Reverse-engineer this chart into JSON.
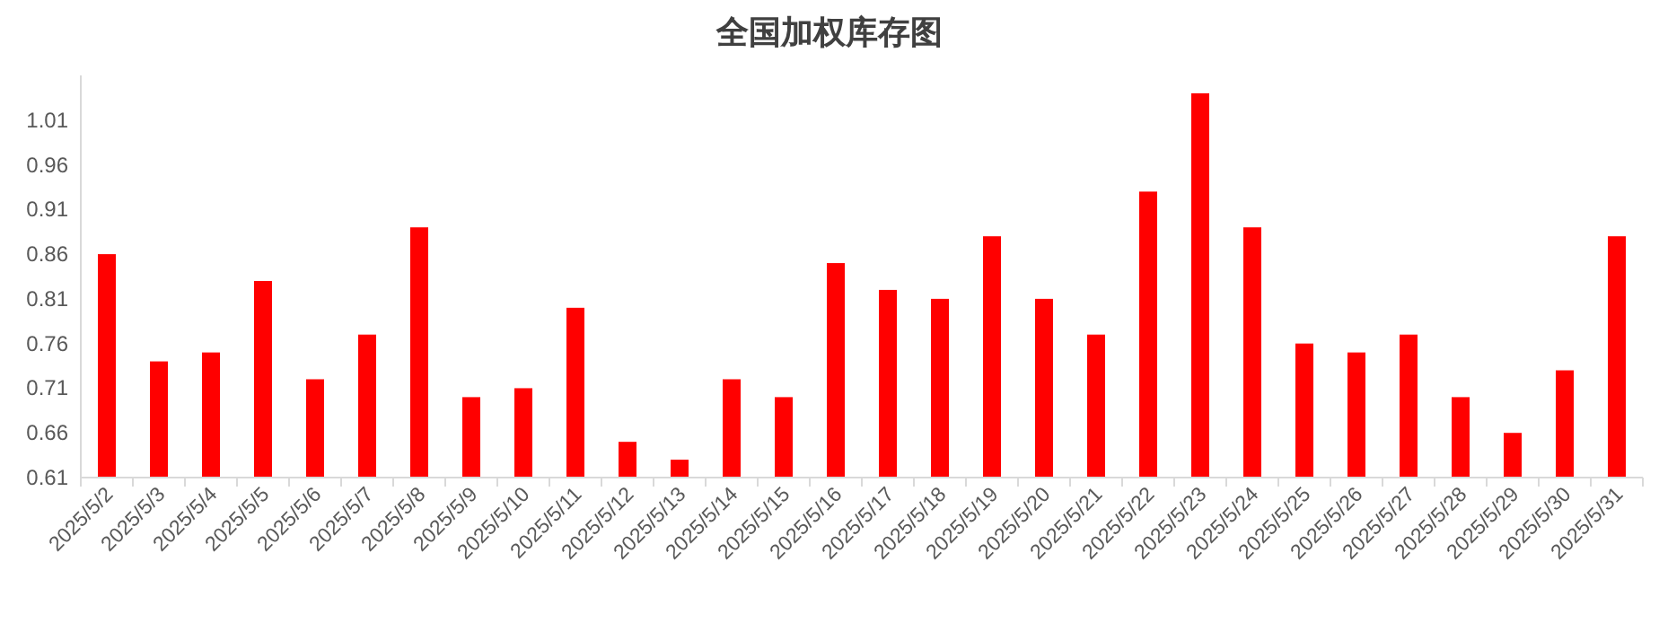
{
  "chart_data": {
    "type": "bar",
    "title": "全国加权库存图",
    "categories": [
      "2025/5/2",
      "2025/5/3",
      "2025/5/4",
      "2025/5/5",
      "2025/5/6",
      "2025/5/7",
      "2025/5/8",
      "2025/5/9",
      "2025/5/10",
      "2025/5/11",
      "2025/5/12",
      "2025/5/13",
      "2025/5/14",
      "2025/5/15",
      "2025/5/16",
      "2025/5/17",
      "2025/5/18",
      "2025/5/19",
      "2025/5/20",
      "2025/5/21",
      "2025/5/22",
      "2025/5/23",
      "2025/5/24",
      "2025/5/25",
      "2025/5/26",
      "2025/5/27",
      "2025/5/28",
      "2025/5/29",
      "2025/5/30",
      "2025/5/31"
    ],
    "values": [
      0.86,
      0.74,
      0.75,
      0.83,
      0.72,
      0.77,
      0.89,
      0.7,
      0.71,
      0.8,
      0.65,
      0.63,
      0.72,
      0.7,
      0.85,
      0.82,
      0.81,
      0.88,
      0.81,
      0.77,
      0.93,
      1.04,
      0.89,
      0.76,
      0.75,
      0.77,
      0.7,
      0.66,
      0.73,
      0.88
    ],
    "color": "#ff0000",
    "ylim": [
      0.61,
      1.06
    ],
    "yticks": [
      {
        "value": 0.61,
        "label": "0.61"
      },
      {
        "value": 0.66,
        "label": "0.66"
      },
      {
        "value": 0.71,
        "label": "0.71"
      },
      {
        "value": 0.76,
        "label": "0.76"
      },
      {
        "value": 0.81,
        "label": "0.81"
      },
      {
        "value": 0.86,
        "label": "0.86"
      },
      {
        "value": 0.91,
        "label": "0.91"
      },
      {
        "value": 0.96,
        "label": "0.96"
      },
      {
        "value": 1.01,
        "label": "1.01"
      }
    ],
    "grid": false
  }
}
